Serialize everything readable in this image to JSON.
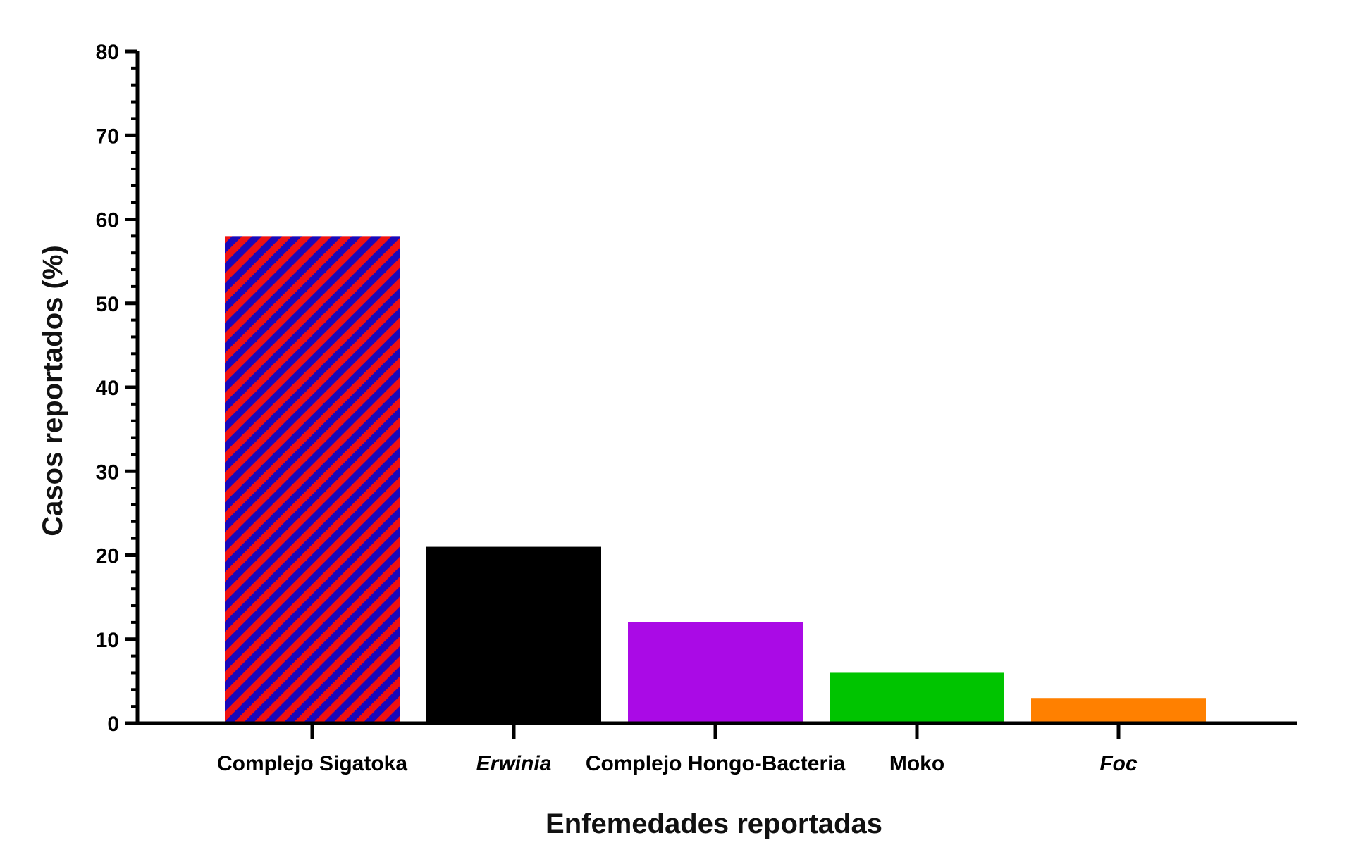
{
  "chart_data": {
    "type": "bar",
    "title": "",
    "xlabel": "Enfemedades reportadas",
    "ylabel": "Casos reportados (%)",
    "ylim": [
      0,
      80
    ],
    "y_major_ticks": [
      0,
      10,
      20,
      30,
      40,
      50,
      60,
      70,
      80
    ],
    "y_minor_step": 2,
    "grid": false,
    "legend": "none",
    "categories": [
      "Complejo Sigatoka",
      "Erwinia",
      "Complejo Hongo-Bacteria",
      "Moko",
      "Foc"
    ],
    "italic_categories": [
      "Erwinia",
      "Foc"
    ],
    "values": [
      58,
      21,
      12,
      6,
      3
    ],
    "bar_fills": [
      {
        "kind": "stripes",
        "colors": [
          "#ee1111",
          "#1a08b8"
        ]
      },
      {
        "kind": "solid",
        "color": "#000000"
      },
      {
        "kind": "solid",
        "color": "#aa0ae6"
      },
      {
        "kind": "solid",
        "color": "#00c400"
      },
      {
        "kind": "solid",
        "color": "#ff8000"
      }
    ]
  }
}
